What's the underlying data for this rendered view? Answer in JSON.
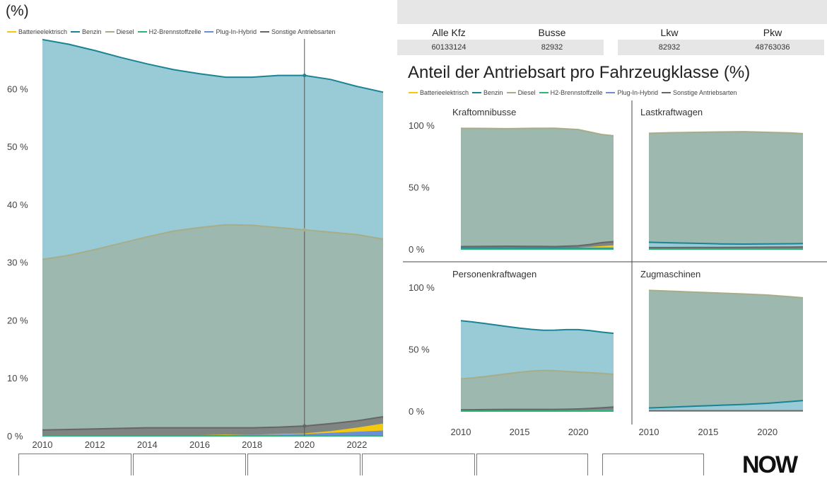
{
  "header": {
    "unit_title": "(%)"
  },
  "legend": [
    {
      "name": "Batterieelektrisch",
      "color": "#f2c811"
    },
    {
      "name": "Benzin",
      "color": "#1a8394"
    },
    {
      "name": "Diesel",
      "color": "#a7ad88"
    },
    {
      "name": "H2-Brennstoffzelle",
      "color": "#2bb673"
    },
    {
      "name": "Plug-In-Hybrid",
      "color": "#6a8fd6"
    },
    {
      "name": "Sonstige Antriebsarten",
      "color": "#666666"
    }
  ],
  "kpis": [
    {
      "label": "Alle Kfz",
      "value": "60133124"
    },
    {
      "label": "Busse",
      "value": "82932"
    },
    {
      "label": "Lkw",
      "value": "82932"
    },
    {
      "label": "Pkw",
      "value": "48763036"
    }
  ],
  "right_title": "Anteil der Antriebsart pro Fahrzeugklasse (%)",
  "logo_text": "NOW",
  "chart_data": [
    {
      "type": "area",
      "title": "",
      "x": [
        2010,
        2011,
        2012,
        2013,
        2014,
        2015,
        2016,
        2017,
        2018,
        2019,
        2020,
        2021,
        2022,
        2023
      ],
      "xticks": [
        "2010",
        "2012",
        "2014",
        "2016",
        "2018",
        "2020",
        "2022"
      ],
      "yticks": [
        "0 %",
        "10 %",
        "20 %",
        "30 %",
        "40 %",
        "50 %",
        "60 %"
      ],
      "ylim": [
        0,
        68
      ],
      "crosshair_x": 2020,
      "series": [
        {
          "name": "Benzin",
          "values": [
            68.5,
            67.7,
            66.6,
            65.4,
            64.3,
            63.3,
            62.6,
            62.0,
            62.0,
            62.3,
            62.3,
            61.6,
            60.4,
            59.4
          ]
        },
        {
          "name": "Diesel",
          "values": [
            30.5,
            31.2,
            32.2,
            33.3,
            34.4,
            35.4,
            36.0,
            36.5,
            36.4,
            36.0,
            35.6,
            35.2,
            34.8,
            34.0
          ]
        },
        {
          "name": "Sonstige Antriebsarten",
          "values": [
            1.0,
            1.1,
            1.2,
            1.3,
            1.4,
            1.4,
            1.4,
            1.4,
            1.4,
            1.5,
            1.7,
            2.1,
            2.6,
            3.3
          ]
        },
        {
          "name": "Batterieelektrisch",
          "values": [
            0.0,
            0.0,
            0.0,
            0.0,
            0.0,
            0.0,
            0.0,
            0.1,
            0.1,
            0.2,
            0.3,
            0.7,
            1.3,
            2.0
          ]
        },
        {
          "name": "Plug-In-Hybrid",
          "values": [
            0.0,
            0.0,
            0.0,
            0.0,
            0.0,
            0.0,
            0.0,
            0.0,
            0.1,
            0.1,
            0.2,
            0.4,
            0.6,
            0.8
          ]
        },
        {
          "name": "H2-Brennstoffzelle",
          "values": [
            0.0,
            0.0,
            0.0,
            0.0,
            0.0,
            0.0,
            0.0,
            0.0,
            0.0,
            0.0,
            0.0,
            0.0,
            0.0,
            0.0
          ]
        }
      ]
    },
    {
      "type": "area",
      "title": "Kraftomnibusse",
      "x": [
        2010,
        2012,
        2014,
        2016,
        2018,
        2020,
        2021,
        2022,
        2023
      ],
      "xticks": [],
      "yticks": [
        "0 %",
        "50 %",
        "100 %"
      ],
      "ylim": [
        0,
        100
      ],
      "series": [
        {
          "name": "Diesel",
          "values": [
            97.5,
            97.4,
            97.2,
            97.5,
            97.6,
            96.5,
            94.5,
            92.5,
            91.5
          ]
        },
        {
          "name": "Sonstige Antriebsarten",
          "values": [
            2.0,
            2.1,
            2.3,
            2.2,
            2.0,
            2.6,
            3.7,
            5.2,
            6.0
          ]
        },
        {
          "name": "Batterieelektrisch",
          "values": [
            0.1,
            0.1,
            0.1,
            0.1,
            0.2,
            0.6,
            1.2,
            1.8,
            2.5
          ]
        },
        {
          "name": "Benzin",
          "values": [
            0.5,
            0.5,
            0.5,
            0.5,
            0.5,
            0.5,
            0.5,
            0.5,
            0.5
          ]
        },
        {
          "name": "H2-Brennstoffzelle",
          "values": [
            0.0,
            0.0,
            0.0,
            0.0,
            0.0,
            0.0,
            0.0,
            0.0,
            0.0
          ]
        }
      ]
    },
    {
      "type": "area",
      "title": "Lastkraftwagen",
      "x": [
        2010,
        2012,
        2014,
        2016,
        2018,
        2020,
        2022,
        2023
      ],
      "xticks": [],
      "yticks": [],
      "ylim": [
        0,
        100
      ],
      "series": [
        {
          "name": "Diesel",
          "values": [
            93.5,
            94.0,
            94.3,
            94.6,
            94.8,
            94.3,
            93.8,
            93.2
          ]
        },
        {
          "name": "Benzin",
          "values": [
            5.5,
            5.0,
            4.6,
            4.2,
            4.0,
            4.2,
            4.3,
            4.4
          ]
        },
        {
          "name": "Sonstige Antriebsarten",
          "values": [
            1.2,
            1.2,
            1.3,
            1.3,
            1.4,
            1.5,
            1.6,
            1.7
          ]
        },
        {
          "name": "H2-Brennstoffzelle",
          "values": [
            0.0,
            0.0,
            0.0,
            0.0,
            0.0,
            0.0,
            0.0,
            0.0
          ]
        }
      ]
    },
    {
      "type": "area",
      "title": "Personenkraftwagen",
      "x": [
        2010,
        2011,
        2012,
        2013,
        2014,
        2015,
        2016,
        2017,
        2018,
        2019,
        2020,
        2021,
        2022,
        2023
      ],
      "xticks": [
        "2010",
        "2015",
        "2020"
      ],
      "yticks": [
        "0 %",
        "50 %",
        "100 %"
      ],
      "ylim": [
        0,
        100
      ],
      "series": [
        {
          "name": "Benzin",
          "values": [
            73.0,
            72.0,
            70.8,
            69.5,
            68.2,
            67.0,
            66.0,
            65.3,
            65.4,
            65.8,
            65.8,
            65.0,
            63.8,
            62.8
          ]
        },
        {
          "name": "Diesel",
          "values": [
            26.0,
            26.8,
            27.8,
            29.0,
            30.2,
            31.4,
            32.3,
            32.8,
            32.6,
            32.0,
            31.5,
            31.0,
            30.5,
            29.7
          ]
        },
        {
          "name": "Sonstige Antriebsarten",
          "values": [
            1.0,
            1.1,
            1.2,
            1.3,
            1.4,
            1.4,
            1.4,
            1.4,
            1.4,
            1.5,
            1.7,
            2.1,
            2.6,
            3.3
          ]
        },
        {
          "name": "Plug-In-Hybrid",
          "values": [
            0.0,
            0.0,
            0.0,
            0.0,
            0.0,
            0.0,
            0.0,
            0.0,
            0.1,
            0.1,
            0.2,
            0.4,
            0.6,
            0.8
          ]
        },
        {
          "name": "H2-Brennstoffzelle",
          "values": [
            0.0,
            0.0,
            0.0,
            0.0,
            0.0,
            0.0,
            0.0,
            0.0,
            0.0,
            0.0,
            0.0,
            0.0,
            0.0,
            0.0
          ]
        }
      ]
    },
    {
      "type": "area",
      "title": "Zugmaschinen",
      "x": [
        2010,
        2012,
        2014,
        2016,
        2018,
        2020,
        2022,
        2023
      ],
      "xticks": [
        "2010",
        "2015",
        "2020"
      ],
      "yticks": [],
      "ylim": [
        0,
        100
      ],
      "series": [
        {
          "name": "Diesel",
          "values": [
            97.5,
            96.8,
            96.0,
            95.3,
            94.6,
            93.7,
            92.3,
            91.5
          ]
        },
        {
          "name": "Benzin",
          "values": [
            2.5,
            3.2,
            4.0,
            4.7,
            5.4,
            6.3,
            7.7,
            8.5
          ]
        },
        {
          "name": "Sonstige Antriebsarten",
          "values": [
            0.2,
            0.2,
            0.2,
            0.2,
            0.2,
            0.2,
            0.2,
            0.2
          ]
        }
      ]
    }
  ]
}
